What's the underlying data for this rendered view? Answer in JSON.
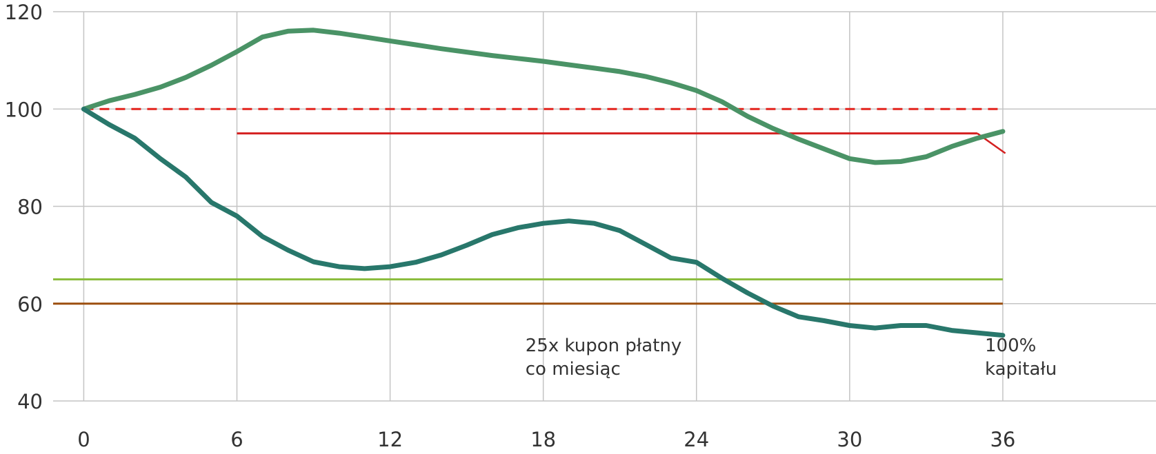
{
  "chart_data": {
    "type": "line",
    "title": "",
    "xlabel": "",
    "ylabel": "",
    "xlim": [
      -1.2,
      42
    ],
    "ylim": [
      40,
      120
    ],
    "x_ticks": [
      0,
      6,
      12,
      18,
      24,
      30,
      36
    ],
    "y_ticks": [
      40,
      60,
      80,
      100,
      120
    ],
    "x_tick_labels": [
      "0",
      "6",
      "12",
      "18",
      "24",
      "30",
      "36"
    ],
    "y_tick_labels": [
      "40",
      "60",
      "80",
      "100",
      "120"
    ],
    "grid": "both",
    "legend": "none",
    "series": [
      {
        "color": "#4a9366",
        "points": [
          [
            0,
            100
          ],
          [
            1,
            101.7
          ],
          [
            2,
            103
          ],
          [
            3,
            104.5
          ],
          [
            4,
            106.5
          ],
          [
            5,
            109
          ],
          [
            6,
            111.8
          ],
          [
            7,
            114.8
          ],
          [
            8,
            116
          ],
          [
            9,
            116.2
          ],
          [
            10,
            115.6
          ],
          [
            11,
            114.8
          ],
          [
            12,
            114
          ],
          [
            13,
            113.2
          ],
          [
            14,
            112.4
          ],
          [
            15,
            111.7
          ],
          [
            16,
            111
          ],
          [
            17,
            110.4
          ],
          [
            18,
            109.8
          ],
          [
            19,
            109.1
          ],
          [
            20,
            108.4
          ],
          [
            21,
            107.7
          ],
          [
            22,
            106.7
          ],
          [
            23,
            105.4
          ],
          [
            24,
            103.8
          ],
          [
            25,
            101.5
          ],
          [
            26,
            98.5
          ],
          [
            27,
            96
          ],
          [
            28,
            93.8
          ],
          [
            29,
            91.8
          ],
          [
            30,
            89.8
          ],
          [
            31,
            89
          ],
          [
            32,
            89.2
          ],
          [
            33,
            90.2
          ],
          [
            34,
            92.3
          ],
          [
            35,
            94
          ],
          [
            36,
            95.4
          ]
        ]
      },
      {
        "color": "#28776b",
        "points": [
          [
            0,
            100
          ],
          [
            1,
            96.8
          ],
          [
            2,
            94
          ],
          [
            3,
            89.8
          ],
          [
            4,
            86
          ],
          [
            5,
            80.8
          ],
          [
            6,
            78
          ],
          [
            7,
            73.8
          ],
          [
            8,
            71
          ],
          [
            9,
            68.6
          ],
          [
            10,
            67.6
          ],
          [
            11,
            67.2
          ],
          [
            12,
            67.6
          ],
          [
            13,
            68.5
          ],
          [
            14,
            70
          ],
          [
            15,
            72
          ],
          [
            16,
            74.2
          ],
          [
            17,
            75.6
          ],
          [
            18,
            76.5
          ],
          [
            19,
            77
          ],
          [
            20,
            76.5
          ],
          [
            21,
            75
          ],
          [
            22,
            72.2
          ],
          [
            23,
            69.4
          ],
          [
            24,
            68.5
          ],
          [
            25,
            65.2
          ],
          [
            26,
            62.2
          ],
          [
            27,
            59.5
          ],
          [
            28,
            57.3
          ],
          [
            29,
            56.5
          ],
          [
            30,
            55.5
          ],
          [
            31,
            55
          ],
          [
            32,
            55.5
          ],
          [
            33,
            55.5
          ],
          [
            34,
            54.5
          ],
          [
            35,
            54
          ],
          [
            36,
            53.5
          ]
        ]
      }
    ],
    "reference_lines": [
      {
        "y": 100,
        "x_from": 0,
        "x_to": 36,
        "color": "#e3231c",
        "style": "dashed"
      },
      {
        "y": 95,
        "x_from": 6,
        "x_to": 35,
        "color": "#d42020",
        "style": "solid"
      },
      {
        "y": 65,
        "x_from": -1.2,
        "x_to": 36,
        "color": "#8bbd3e",
        "style": "solid"
      },
      {
        "y": 60,
        "x_from": -1.2,
        "x_to": 36,
        "color": "#9c4e0e",
        "style": "solid"
      }
    ],
    "payoff_segment": {
      "x": [
        35,
        36.1
      ],
      "y": [
        95,
        90.9
      ],
      "color": "#d42020"
    },
    "annotations": [
      {
        "lines": [
          "25x kupon płatny",
          "co miesiąc"
        ],
        "x": 17.3,
        "y": 50.2
      },
      {
        "lines": [
          "100%",
          "kapitału"
        ],
        "x": 35.3,
        "y": 50.2
      }
    ]
  }
}
